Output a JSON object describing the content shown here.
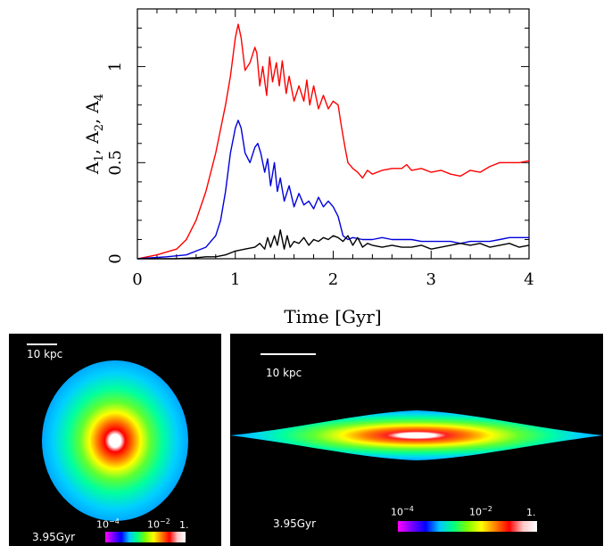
{
  "chart_data": {
    "type": "line",
    "xlabel": "Time [Gyr]",
    "ylabel": "A1, A2, A4",
    "xlim": [
      0,
      4
    ],
    "ylim": [
      0,
      1.3
    ],
    "xticks": [
      "0",
      "1",
      "2",
      "3",
      "4"
    ],
    "yticks": [
      "0",
      "0.5",
      "1"
    ],
    "series": [
      {
        "color": "#ff0000",
        "x": [
          0,
          0.2,
          0.4,
          0.5,
          0.6,
          0.7,
          0.8,
          0.9,
          0.95,
          1.0,
          1.03,
          1.06,
          1.1,
          1.15,
          1.2,
          1.22,
          1.25,
          1.28,
          1.32,
          1.35,
          1.38,
          1.42,
          1.45,
          1.48,
          1.52,
          1.55,
          1.6,
          1.65,
          1.7,
          1.73,
          1.76,
          1.8,
          1.85,
          1.9,
          1.95,
          2.0,
          2.05,
          2.08,
          2.12,
          2.15,
          2.2,
          2.25,
          2.3,
          2.35,
          2.4,
          2.5,
          2.6,
          2.7,
          2.75,
          2.8,
          2.9,
          3.0,
          3.1,
          3.2,
          3.3,
          3.4,
          3.5,
          3.6,
          3.7,
          3.8,
          3.9,
          4.0
        ],
        "values": [
          0,
          0.02,
          0.05,
          0.1,
          0.2,
          0.35,
          0.55,
          0.8,
          0.95,
          1.15,
          1.22,
          1.15,
          0.98,
          1.02,
          1.1,
          1.07,
          0.9,
          1.0,
          0.85,
          1.05,
          0.92,
          1.02,
          0.9,
          1.03,
          0.86,
          0.95,
          0.82,
          0.9,
          0.82,
          0.93,
          0.8,
          0.9,
          0.78,
          0.85,
          0.78,
          0.82,
          0.8,
          0.7,
          0.58,
          0.5,
          0.47,
          0.45,
          0.42,
          0.46,
          0.44,
          0.46,
          0.47,
          0.47,
          0.49,
          0.46,
          0.47,
          0.45,
          0.46,
          0.44,
          0.43,
          0.46,
          0.45,
          0.48,
          0.5,
          0.5,
          0.5,
          0.51
        ]
      },
      {
        "color": "#0000dd",
        "x": [
          0,
          0.3,
          0.5,
          0.6,
          0.7,
          0.8,
          0.85,
          0.9,
          0.95,
          1.0,
          1.03,
          1.06,
          1.1,
          1.15,
          1.2,
          1.23,
          1.26,
          1.3,
          1.33,
          1.36,
          1.4,
          1.43,
          1.46,
          1.5,
          1.55,
          1.6,
          1.65,
          1.7,
          1.75,
          1.8,
          1.85,
          1.9,
          1.95,
          2.0,
          2.05,
          2.1,
          2.15,
          2.2,
          2.3,
          2.4,
          2.5,
          2.6,
          2.7,
          2.8,
          2.9,
          3.0,
          3.1,
          3.2,
          3.3,
          3.4,
          3.5,
          3.6,
          3.7,
          3.8,
          3.9,
          4.0
        ],
        "values": [
          0,
          0.01,
          0.02,
          0.04,
          0.06,
          0.12,
          0.2,
          0.35,
          0.55,
          0.68,
          0.72,
          0.68,
          0.55,
          0.5,
          0.58,
          0.6,
          0.55,
          0.45,
          0.52,
          0.38,
          0.5,
          0.35,
          0.42,
          0.3,
          0.38,
          0.27,
          0.34,
          0.28,
          0.3,
          0.26,
          0.32,
          0.27,
          0.3,
          0.27,
          0.22,
          0.12,
          0.1,
          0.11,
          0.1,
          0.1,
          0.11,
          0.1,
          0.1,
          0.1,
          0.09,
          0.09,
          0.09,
          0.09,
          0.08,
          0.09,
          0.09,
          0.09,
          0.1,
          0.11,
          0.11,
          0.11
        ]
      },
      {
        "color": "#000000",
        "x": [
          0,
          0.4,
          0.6,
          0.7,
          0.8,
          0.9,
          1.0,
          1.1,
          1.2,
          1.25,
          1.3,
          1.33,
          1.36,
          1.4,
          1.43,
          1.46,
          1.5,
          1.53,
          1.56,
          1.6,
          1.65,
          1.7,
          1.75,
          1.8,
          1.85,
          1.9,
          1.95,
          2.0,
          2.05,
          2.1,
          2.15,
          2.2,
          2.25,
          2.3,
          2.35,
          2.4,
          2.5,
          2.6,
          2.7,
          2.8,
          2.9,
          3.0,
          3.1,
          3.2,
          3.3,
          3.4,
          3.5,
          3.6,
          3.7,
          3.8,
          3.9,
          4.0
        ],
        "values": [
          0,
          0,
          0.005,
          0.01,
          0.01,
          0.02,
          0.04,
          0.05,
          0.06,
          0.08,
          0.05,
          0.11,
          0.06,
          0.12,
          0.07,
          0.15,
          0.05,
          0.12,
          0.06,
          0.09,
          0.08,
          0.11,
          0.07,
          0.1,
          0.09,
          0.11,
          0.1,
          0.12,
          0.11,
          0.09,
          0.12,
          0.07,
          0.11,
          0.06,
          0.08,
          0.07,
          0.06,
          0.07,
          0.06,
          0.06,
          0.07,
          0.05,
          0.06,
          0.07,
          0.08,
          0.07,
          0.08,
          0.06,
          0.07,
          0.08,
          0.06,
          0.07
        ]
      }
    ]
  },
  "panels": {
    "left": {
      "scale_label": "10 kpc",
      "time": "3.95Gyr",
      "cbar_min": "10",
      "cbar_min_exp": "−4",
      "cbar_mid": "10",
      "cbar_mid_exp": "−2",
      "cbar_max": "1."
    },
    "right": {
      "scale_label": "10 kpc",
      "time": "3.95Gyr",
      "cbar_min": "10",
      "cbar_min_exp": "−4",
      "cbar_mid": "10",
      "cbar_mid_exp": "−2",
      "cbar_max": "1."
    }
  }
}
